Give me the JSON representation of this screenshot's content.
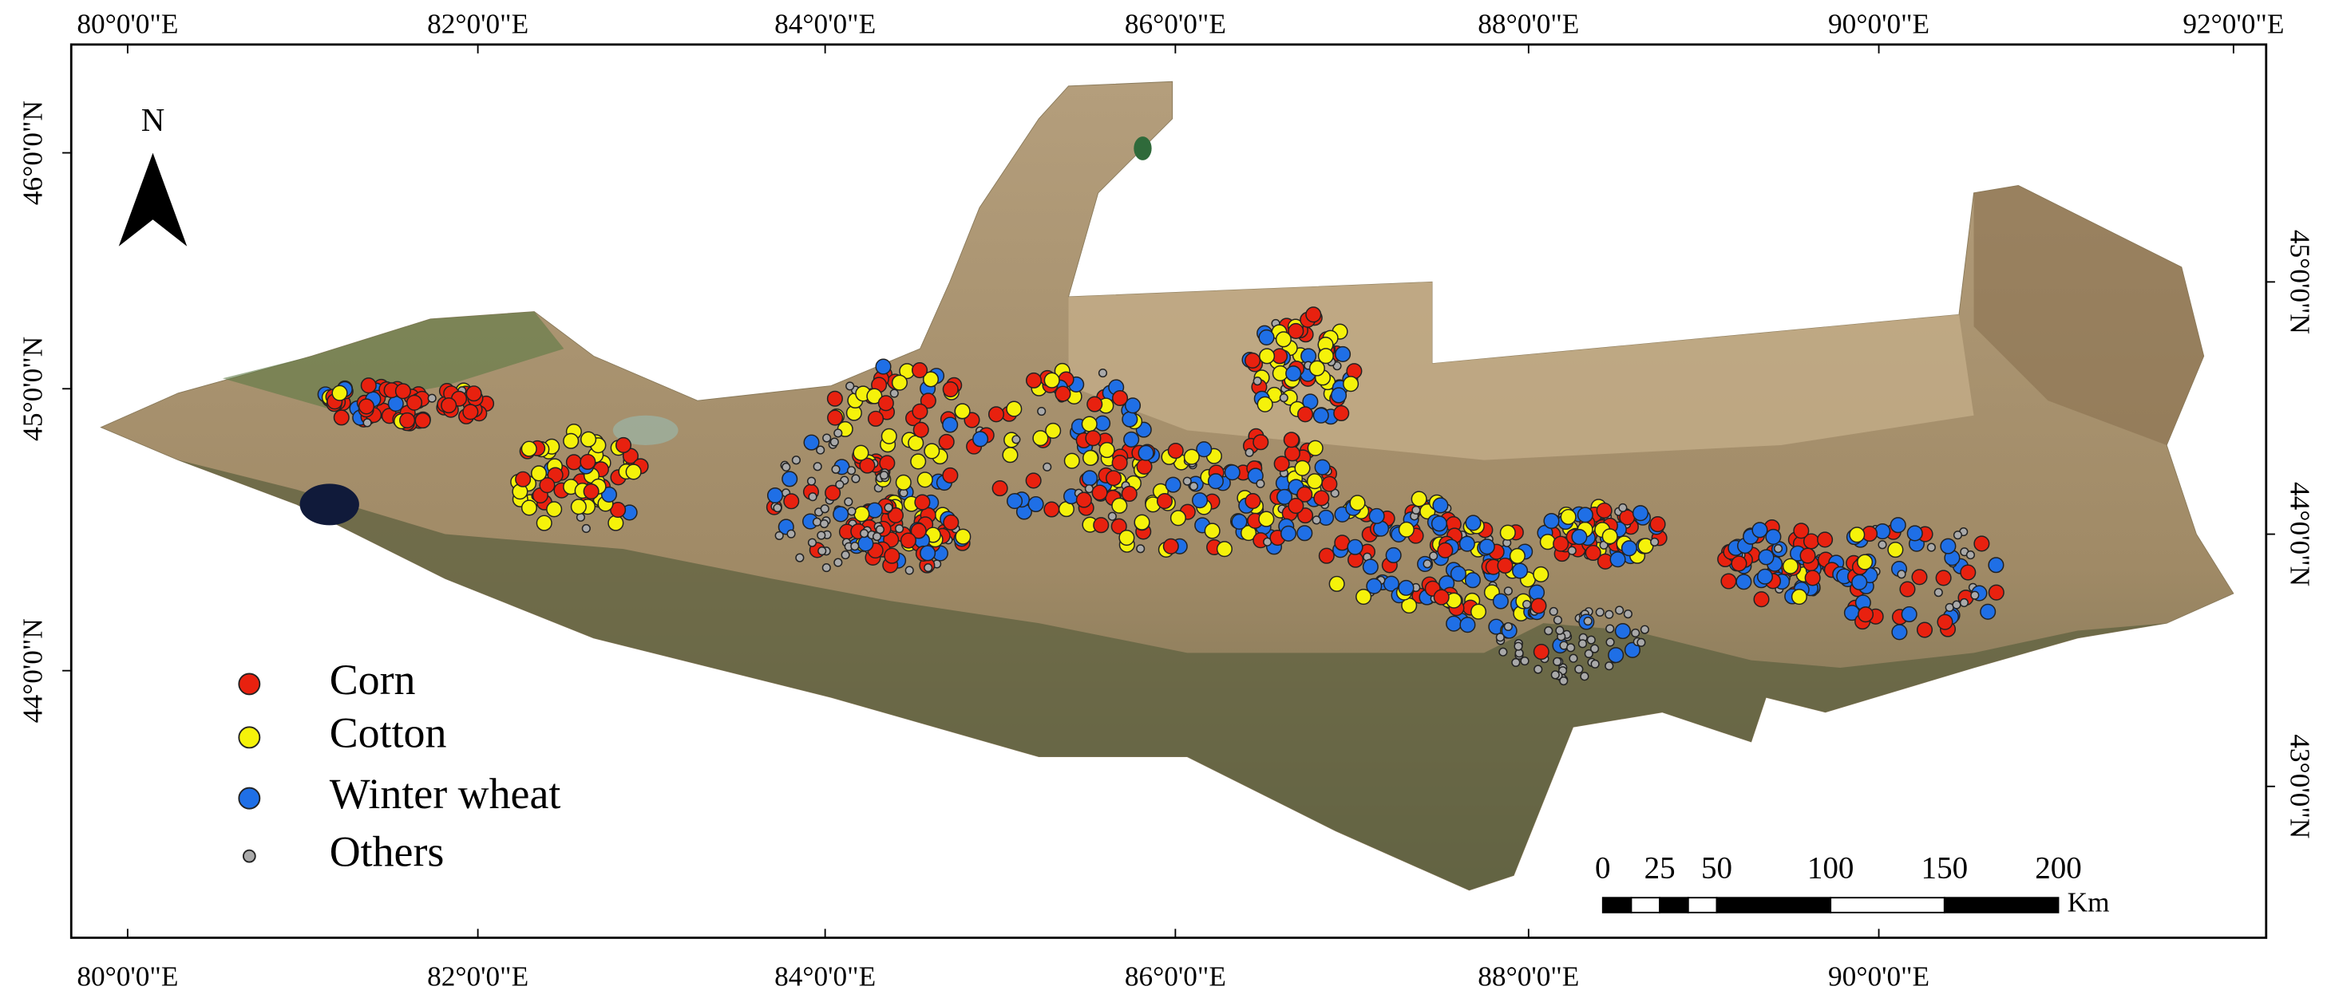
{
  "map": {
    "top_labels": [
      "80°0'0\"E",
      "82°0'0\"E",
      "84°0'0\"E",
      "86°0'0\"E",
      "88°0'0\"E",
      "90°0'0\"E",
      "92°0'0\"E"
    ],
    "bottom_labels": [
      "80°0'0\"E",
      "82°0'0\"E",
      "84°0'0\"E",
      "86°0'0\"E",
      "88°0'0\"E",
      "90°0'0\"E"
    ],
    "left_labels": [
      "46°0'0\"N",
      "45°0'0\"N",
      "44°0'0\"N"
    ],
    "right_labels": [
      "45°0'0\"N",
      "44°0'0\"N",
      "43°0'0\"N"
    ],
    "north_arrow": "N",
    "legend": [
      {
        "label": "Corn",
        "color": "#e8210f"
      },
      {
        "label": "Cotton",
        "color": "#f5f20a"
      },
      {
        "label": "Winter wheat",
        "color": "#1f6fe6"
      },
      {
        "label": "Others",
        "color": "#a9a9a9"
      }
    ],
    "scale_bar": {
      "ticks": [
        0,
        25,
        50,
        100,
        150,
        200
      ],
      "unit": "Km"
    }
  }
}
